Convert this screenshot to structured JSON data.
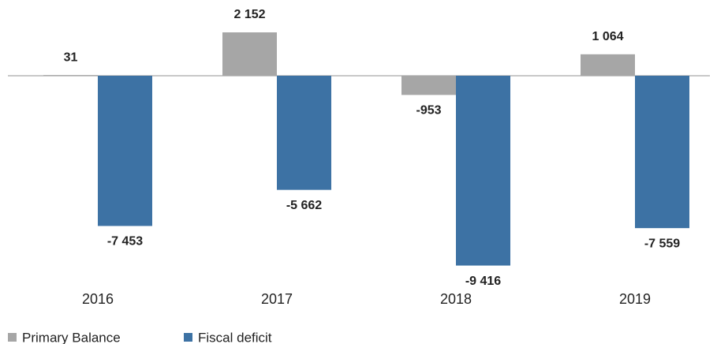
{
  "chart_data": {
    "type": "bar",
    "categories": [
      "2016",
      "2017",
      "2018",
      "2019"
    ],
    "series": [
      {
        "name": "Primary Balance",
        "color": "#a6a6a6",
        "values": [
          31,
          2152,
          -953,
          1064
        ],
        "value_labels": [
          "31",
          "2 152",
          "-953",
          "1 064"
        ]
      },
      {
        "name": "Fiscal deficit",
        "color": "#3d72a4",
        "values": [
          -7453,
          -5662,
          -9416,
          -7559
        ],
        "value_labels": [
          "-7 453",
          "-5 662",
          "-9 416",
          "-7 559"
        ]
      }
    ],
    "legend": "bottom-left"
  }
}
